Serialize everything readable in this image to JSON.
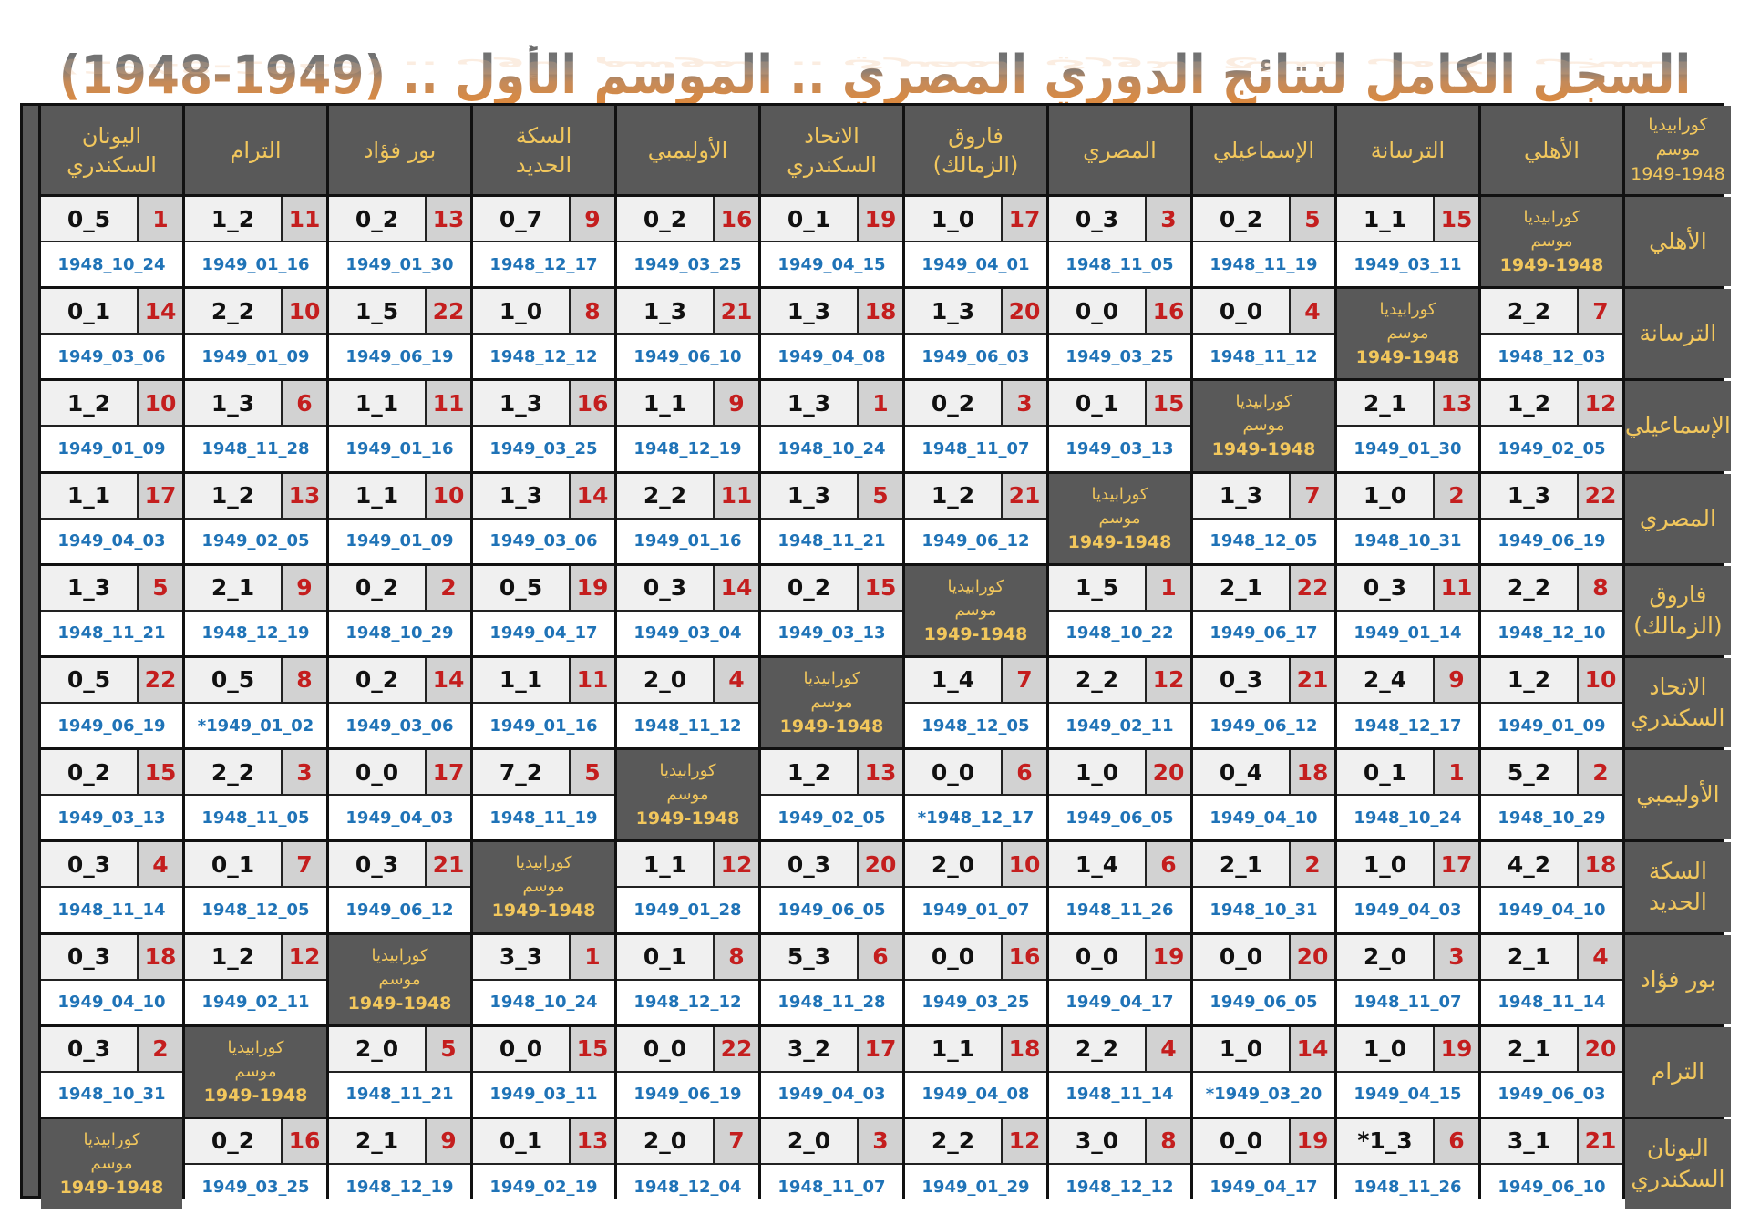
{
  "title": "السجل الكامل لنتائج الدوري المصري .. الموسم الأول .. (1949-1948)",
  "corner": {
    "line1": "كورابيديا",
    "line2": "موسم",
    "line3": "1949-1948"
  },
  "diagonal": {
    "line1": "كورابيديا",
    "line2": "موسم",
    "line3": "1949-1948"
  },
  "columns": [
    "اليونان\nالسكندري",
    "الترام",
    "بور فؤاد",
    "السكة\nالحديد",
    "الأوليمبي",
    "الاتحاد\nالسكندري",
    "فاروق\n(الزمالك)",
    "المصري",
    "الإسماعيلي",
    "الترسانة",
    "الأهلي"
  ],
  "rows": [
    {
      "team": "الأهلي",
      "cells": [
        {
          "score": "0_5",
          "round": "1",
          "date": "1948_10_24"
        },
        {
          "score": "1_2",
          "round": "11",
          "date": "1949_01_16"
        },
        {
          "score": "0_2",
          "round": "13",
          "date": "1949_01_30"
        },
        {
          "score": "0_7",
          "round": "9",
          "date": "1948_12_17"
        },
        {
          "score": "0_2",
          "round": "16",
          "date": "1949_03_25"
        },
        {
          "score": "0_1",
          "round": "19",
          "date": "1949_04_15"
        },
        {
          "score": "1_0",
          "round": "17",
          "date": "1949_04_01"
        },
        {
          "score": "0_3",
          "round": "3",
          "date": "1948_11_05"
        },
        {
          "score": "0_2",
          "round": "5",
          "date": "1948_11_19"
        },
        {
          "score": "1_1",
          "round": "15",
          "date": "1949_03_11"
        },
        {
          "diag": true
        }
      ]
    },
    {
      "team": "الترسانة",
      "cells": [
        {
          "score": "0_1",
          "round": "14",
          "date": "1949_03_06"
        },
        {
          "score": "2_2",
          "round": "10",
          "date": "1949_01_09"
        },
        {
          "score": "1_5",
          "round": "22",
          "date": "1949_06_19"
        },
        {
          "score": "1_0",
          "round": "8",
          "date": "1948_12_12"
        },
        {
          "score": "1_3",
          "round": "21",
          "date": "1949_06_10"
        },
        {
          "score": "1_3",
          "round": "18",
          "date": "1949_04_08"
        },
        {
          "score": "1_3",
          "round": "20",
          "date": "1949_06_03"
        },
        {
          "score": "0_0",
          "round": "16",
          "date": "1949_03_25"
        },
        {
          "score": "0_0",
          "round": "4",
          "date": "1948_11_12"
        },
        {
          "diag": true
        },
        {
          "score": "2_2",
          "round": "7",
          "date": "1948_12_03"
        }
      ]
    },
    {
      "team": "الإسماعيلي",
      "cells": [
        {
          "score": "1_2",
          "round": "10",
          "date": "1949_01_09"
        },
        {
          "score": "1_3",
          "round": "6",
          "date": "1948_11_28"
        },
        {
          "score": "1_1",
          "round": "11",
          "date": "1949_01_16"
        },
        {
          "score": "1_3",
          "round": "16",
          "date": "1949_03_25"
        },
        {
          "score": "1_1",
          "round": "9",
          "date": "1948_12_19"
        },
        {
          "score": "1_3",
          "round": "1",
          "date": "1948_10_24"
        },
        {
          "score": "0_2",
          "round": "3",
          "date": "1948_11_07"
        },
        {
          "score": "0_1",
          "round": "15",
          "date": "1949_03_13"
        },
        {
          "diag": true
        },
        {
          "score": "2_1",
          "round": "13",
          "date": "1949_01_30"
        },
        {
          "score": "1_2",
          "round": "12",
          "date": "1949_02_05"
        }
      ]
    },
    {
      "team": "المصري",
      "cells": [
        {
          "score": "1_1",
          "round": "17",
          "date": "1949_04_03"
        },
        {
          "score": "1_2",
          "round": "13",
          "date": "1949_02_05"
        },
        {
          "score": "1_1",
          "round": "10",
          "date": "1949_01_09"
        },
        {
          "score": "1_3",
          "round": "14",
          "date": "1949_03_06"
        },
        {
          "score": "2_2",
          "round": "11",
          "date": "1949_01_16"
        },
        {
          "score": "1_3",
          "round": "5",
          "date": "1948_11_21"
        },
        {
          "score": "1_2",
          "round": "21",
          "date": "1949_06_12"
        },
        {
          "diag": true
        },
        {
          "score": "1_3",
          "round": "7",
          "date": "1948_12_05"
        },
        {
          "score": "1_0",
          "round": "2",
          "date": "1948_10_31"
        },
        {
          "score": "1_3",
          "round": "22",
          "date": "1949_06_19"
        }
      ]
    },
    {
      "team": "فاروق\n(الزمالك)",
      "cells": [
        {
          "score": "1_3",
          "round": "5",
          "date": "1948_11_21"
        },
        {
          "score": "2_1",
          "round": "9",
          "date": "1948_12_19"
        },
        {
          "score": "0_2",
          "round": "2",
          "date": "1948_10_29"
        },
        {
          "score": "0_5",
          "round": "19",
          "date": "1949_04_17"
        },
        {
          "score": "0_3",
          "round": "14",
          "date": "1949_03_04"
        },
        {
          "score": "0_2",
          "round": "15",
          "date": "1949_03_13"
        },
        {
          "diag": true
        },
        {
          "score": "1_5",
          "round": "1",
          "date": "1948_10_22"
        },
        {
          "score": "2_1",
          "round": "22",
          "date": "1949_06_17"
        },
        {
          "score": "0_3",
          "round": "11",
          "date": "1949_01_14"
        },
        {
          "score": "2_2",
          "round": "8",
          "date": "1948_12_10"
        }
      ]
    },
    {
      "team": "الاتحاد\nالسكندري",
      "cells": [
        {
          "score": "0_5",
          "round": "22",
          "date": "1949_06_19"
        },
        {
          "score": "0_5",
          "round": "8",
          "date": "*1949_01_02"
        },
        {
          "score": "0_2",
          "round": "14",
          "date": "1949_03_06"
        },
        {
          "score": "1_1",
          "round": "11",
          "date": "1949_01_16"
        },
        {
          "score": "2_0",
          "round": "4",
          "date": "1948_11_12"
        },
        {
          "diag": true
        },
        {
          "score": "1_4",
          "round": "7",
          "date": "1948_12_05"
        },
        {
          "score": "2_2",
          "round": "12",
          "date": "1949_02_11"
        },
        {
          "score": "0_3",
          "round": "21",
          "date": "1949_06_12"
        },
        {
          "score": "2_4",
          "round": "9",
          "date": "1948_12_17"
        },
        {
          "score": "1_2",
          "round": "10",
          "date": "1949_01_09"
        }
      ]
    },
    {
      "team": "الأوليمبي",
      "cells": [
        {
          "score": "0_2",
          "round": "15",
          "date": "1949_03_13"
        },
        {
          "score": "2_2",
          "round": "3",
          "date": "1948_11_05"
        },
        {
          "score": "0_0",
          "round": "17",
          "date": "1949_04_03"
        },
        {
          "score": "7_2",
          "round": "5",
          "date": "1948_11_19"
        },
        {
          "diag": true
        },
        {
          "score": "1_2",
          "round": "13",
          "date": "1949_02_05"
        },
        {
          "score": "0_0",
          "round": "6",
          "date": "*1948_12_17"
        },
        {
          "score": "1_0",
          "round": "20",
          "date": "1949_06_05"
        },
        {
          "score": "0_4",
          "round": "18",
          "date": "1949_04_10"
        },
        {
          "score": "0_1",
          "round": "1",
          "date": "1948_10_24"
        },
        {
          "score": "5_2",
          "round": "2",
          "date": "1948_10_29"
        }
      ]
    },
    {
      "team": "السكة\nالحديد",
      "cells": [
        {
          "score": "0_3",
          "round": "4",
          "date": "1948_11_14"
        },
        {
          "score": "0_1",
          "round": "7",
          "date": "1948_12_05"
        },
        {
          "score": "0_3",
          "round": "21",
          "date": "1949_06_12"
        },
        {
          "diag": true
        },
        {
          "score": "1_1",
          "round": "12",
          "date": "1949_01_28"
        },
        {
          "score": "0_3",
          "round": "20",
          "date": "1949_06_05"
        },
        {
          "score": "2_0",
          "round": "10",
          "date": "1949_01_07"
        },
        {
          "score": "1_4",
          "round": "6",
          "date": "1948_11_26"
        },
        {
          "score": "2_1",
          "round": "2",
          "date": "1948_10_31"
        },
        {
          "score": "1_0",
          "round": "17",
          "date": "1949_04_03"
        },
        {
          "score": "4_2",
          "round": "18",
          "date": "1949_04_10"
        }
      ]
    },
    {
      "team": "بور فؤاد",
      "cells": [
        {
          "score": "0_3",
          "round": "18",
          "date": "1949_04_10"
        },
        {
          "score": "1_2",
          "round": "12",
          "date": "1949_02_11"
        },
        {
          "diag": true
        },
        {
          "score": "3_3",
          "round": "1",
          "date": "1948_10_24"
        },
        {
          "score": "0_1",
          "round": "8",
          "date": "1948_12_12"
        },
        {
          "score": "5_3",
          "round": "6",
          "date": "1948_11_28"
        },
        {
          "score": "0_0",
          "round": "16",
          "date": "1949_03_25"
        },
        {
          "score": "0_0",
          "round": "19",
          "date": "1949_04_17"
        },
        {
          "score": "0_0",
          "round": "20",
          "date": "1949_06_05"
        },
        {
          "score": "2_0",
          "round": "3",
          "date": "1948_11_07"
        },
        {
          "score": "2_1",
          "round": "4",
          "date": "1948_11_14"
        }
      ]
    },
    {
      "team": "الترام",
      "cells": [
        {
          "score": "0_3",
          "round": "2",
          "date": "1948_10_31"
        },
        {
          "diag": true
        },
        {
          "score": "2_0",
          "round": "5",
          "date": "1948_11_21"
        },
        {
          "score": "0_0",
          "round": "15",
          "date": "1949_03_11"
        },
        {
          "score": "0_0",
          "round": "22",
          "date": "1949_06_19"
        },
        {
          "score": "3_2",
          "round": "17",
          "date": "1949_04_03"
        },
        {
          "score": "1_1",
          "round": "18",
          "date": "1949_04_08"
        },
        {
          "score": "2_2",
          "round": "4",
          "date": "1948_11_14"
        },
        {
          "score": "1_0",
          "round": "14",
          "date": "*1949_03_20"
        },
        {
          "score": "1_0",
          "round": "19",
          "date": "1949_04_15"
        },
        {
          "score": "2_1",
          "round": "20",
          "date": "1949_06_03"
        }
      ]
    },
    {
      "team": "اليونان\nالسكندري",
      "cells": [
        {
          "diag": true
        },
        {
          "score": "0_2",
          "round": "16",
          "date": "1949_03_25"
        },
        {
          "score": "2_1",
          "round": "9",
          "date": "1948_12_19"
        },
        {
          "score": "0_1",
          "round": "13",
          "date": "1949_02_19"
        },
        {
          "score": "2_0",
          "round": "7",
          "date": "1948_12_04"
        },
        {
          "score": "2_0",
          "round": "3",
          "date": "1948_11_07"
        },
        {
          "score": "2_2",
          "round": "12",
          "date": "1949_01_29"
        },
        {
          "score": "3_0",
          "round": "8",
          "date": "1948_12_12"
        },
        {
          "score": "0_0",
          "round": "19",
          "date": "1949_04_17"
        },
        {
          "score": "*1_3",
          "round": "6",
          "date": "1948_11_26"
        },
        {
          "score": "3_1",
          "round": "21",
          "date": "1949_06_10"
        }
      ]
    }
  ],
  "colors": {
    "header_bg": "#595959",
    "header_text": "#f2c75c",
    "score_text": "#111111",
    "round_text": "#c41e1e",
    "date_text": "#1f73b7",
    "title_gradient_top": "#6b6b6b",
    "title_gradient_bottom": "#e0893a"
  }
}
